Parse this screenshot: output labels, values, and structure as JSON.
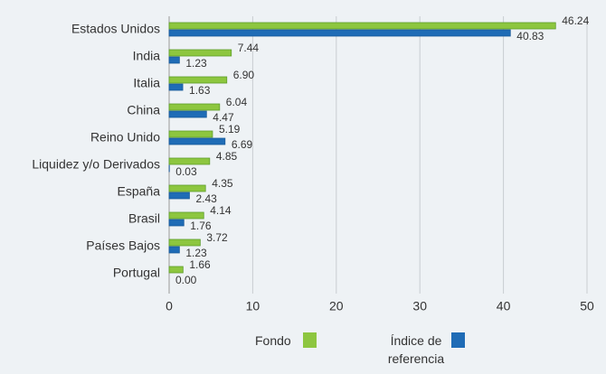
{
  "chart_data": {
    "type": "barh",
    "categories": [
      "Estados Unidos",
      "India",
      "Italia",
      "China",
      "Reino Unido",
      "Liquidez y/o Derivados",
      "España",
      "Brasil",
      "Países Bajos",
      "Portugal"
    ],
    "series": [
      {
        "name": "Fondo",
        "color": "#8dc63f",
        "values": [
          46.24,
          7.44,
          6.9,
          6.04,
          5.19,
          4.85,
          4.35,
          4.14,
          3.72,
          1.66
        ],
        "value_labels": [
          "46.24",
          "7.44",
          "6.90",
          "6.04",
          "5.19",
          "4.85",
          "4.35",
          "4.14",
          "3.72",
          "1.66"
        ]
      },
      {
        "name": "Índice de referencia",
        "color": "#1f6cb6",
        "values": [
          40.83,
          1.23,
          1.63,
          4.47,
          6.69,
          0.03,
          2.43,
          1.76,
          1.23,
          0
        ],
        "value_labels": [
          "40.83",
          "1.23",
          "1.63",
          "4.47",
          "6.69",
          "0.03",
          "2.43",
          "1.76",
          "1.23",
          "0.00"
        ]
      }
    ],
    "xlim": [
      0,
      50
    ],
    "xticks": [
      0,
      10,
      20,
      30,
      40,
      50
    ],
    "grid": true
  }
}
